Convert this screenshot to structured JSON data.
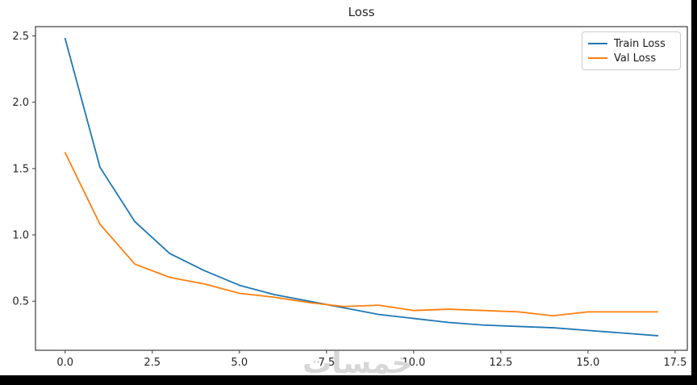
{
  "page": {
    "watermark_text": "خمسات",
    "watermark_color": "#d7d7d7",
    "letterbox_color": "#000000",
    "background_color": "#ffffff"
  },
  "chart_data": {
    "type": "line",
    "title": "Loss",
    "xlabel": "",
    "ylabel": "",
    "grid": false,
    "legend_position": "upper right",
    "axis_color": "#3b3b3b",
    "tick_text_color": "#262626",
    "xlim": [
      -0.85,
      17.85
    ],
    "ylim": [
      0.13,
      2.57
    ],
    "xticks": [
      0,
      2.5,
      5,
      7.5,
      10,
      12.5,
      15,
      17.5
    ],
    "xtick_labels": [
      "0.0",
      "2.5",
      "5.0",
      "7.5",
      "10.0",
      "12.5",
      "15.0",
      "17.5"
    ],
    "yticks": [
      0.5,
      1.0,
      1.5,
      2.0,
      2.5
    ],
    "ytick_labels": [
      "0.5",
      "1.0",
      "1.5",
      "2.0",
      "2.5"
    ],
    "x": [
      0,
      1,
      2,
      3,
      4,
      5,
      6,
      7,
      8,
      9,
      10,
      11,
      12,
      13,
      14,
      15,
      16,
      17
    ],
    "series": [
      {
        "name": "Train Loss",
        "color": "#1f77b4",
        "values": [
          2.48,
          1.51,
          1.1,
          0.86,
          0.73,
          0.62,
          0.55,
          0.5,
          0.45,
          0.4,
          0.37,
          0.34,
          0.32,
          0.31,
          0.3,
          0.28,
          0.26,
          0.24
        ]
      },
      {
        "name": "Val Loss",
        "color": "#ff7f0e",
        "values": [
          1.62,
          1.08,
          0.78,
          0.68,
          0.63,
          0.56,
          0.53,
          0.49,
          0.46,
          0.47,
          0.43,
          0.44,
          0.43,
          0.42,
          0.39,
          0.42,
          0.42,
          0.42
        ]
      }
    ]
  }
}
